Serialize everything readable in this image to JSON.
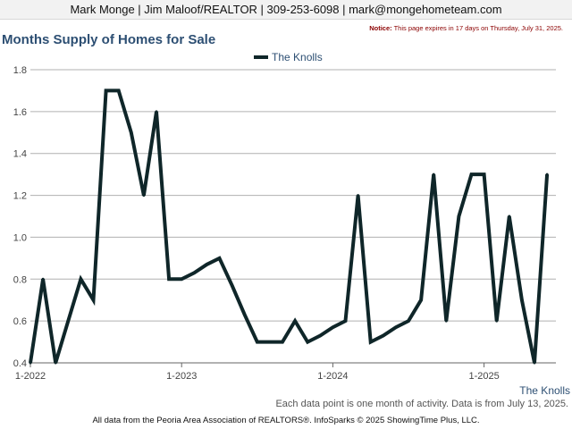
{
  "header": {
    "contact": "Mark Monge | Jim Maloof/REALTOR | 309-253-6098 | mark@mongehometeam.com"
  },
  "notice": {
    "label": "Notice:",
    "text": "This page expires in 17 days on Thursday, July 31, 2025."
  },
  "footer": {
    "source_label": "The Knolls",
    "note": "Each data point is one month of activity. Data is from July 13, 2025.",
    "credits": "All data from the Peoria Area Association of REALTORS®. InfoSparks © 2025 ShowingTime Plus, LLC."
  },
  "colors": {
    "line": "#0f2629",
    "title": "#2d4f73",
    "grid": "#b0b0b0",
    "notice": "#8b0000"
  },
  "chart_data": {
    "type": "line",
    "title": "Months Supply of Homes for Sale",
    "legend": "top-center",
    "grid": true,
    "ylim": [
      0.4,
      1.8
    ],
    "yticks": [
      "1.8",
      "1.6",
      "1.4",
      "1.2",
      "1.0",
      "0.8",
      "0.6",
      "0.4"
    ],
    "xticks": [
      "1-2022",
      "1-2023",
      "1-2024",
      "1-2025"
    ],
    "series": [
      {
        "name": "The Knolls",
        "x": [
          "2022-01",
          "2022-02",
          "2022-03",
          "2022-04",
          "2022-05",
          "2022-06",
          "2022-07",
          "2022-08",
          "2022-09",
          "2022-10",
          "2022-11",
          "2022-12",
          "2023-01",
          "2023-02",
          "2023-03",
          "2023-04",
          "2023-05",
          "2023-06",
          "2023-07",
          "2023-08",
          "2023-09",
          "2023-10",
          "2023-11",
          "2023-12",
          "2024-01",
          "2024-02",
          "2024-03",
          "2024-04",
          "2024-05",
          "2024-06",
          "2024-07",
          "2024-08",
          "2024-09",
          "2024-10",
          "2024-11",
          "2024-12",
          "2025-01",
          "2025-02",
          "2025-03",
          "2025-04",
          "2025-05",
          "2025-06"
        ],
        "values": [
          0.4,
          0.8,
          0.4,
          0.6,
          0.8,
          0.7,
          1.7,
          1.7,
          1.5,
          1.2,
          1.6,
          0.8,
          0.8,
          0.83,
          0.87,
          0.9,
          0.77,
          0.63,
          0.5,
          0.5,
          0.5,
          0.6,
          0.5,
          0.53,
          0.57,
          0.6,
          1.2,
          0.5,
          0.53,
          0.57,
          0.6,
          0.7,
          1.3,
          0.6,
          1.1,
          1.3,
          1.3,
          0.6,
          1.1,
          0.7,
          0.4,
          1.3
        ]
      }
    ]
  }
}
